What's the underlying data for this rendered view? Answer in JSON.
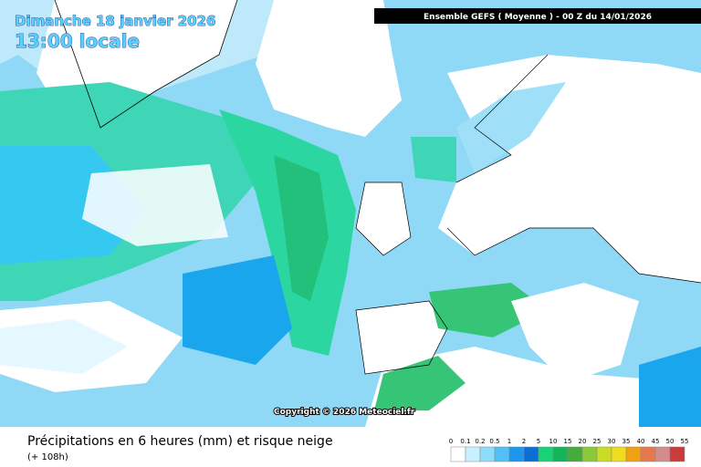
{
  "header": {
    "date": "Dimanche 18 janvier 2026",
    "time": "13:00 locale",
    "run": "Ensemble GEFS  ( Moyenne )  -  00 Z du 14/01/2026"
  },
  "copyright": "Copyright © 2026 Meteociel.fr",
  "footer": {
    "title": "Précipitations en 6 heures (mm) et risque neige",
    "lead": "(+ 108h)"
  },
  "legend": {
    "labels": [
      "0",
      "0.1",
      "0.2",
      "0.5",
      "1",
      "2",
      "5",
      "10",
      "15",
      "20",
      "25",
      "30",
      "35",
      "40",
      "45",
      "50",
      "55"
    ],
    "colors": [
      "#ffffff",
      "#c8f0ff",
      "#8fdcfa",
      "#50c0f5",
      "#1e96eb",
      "#0a6ed2",
      "#18d278",
      "#14b45a",
      "#46aa3c",
      "#8cc83c",
      "#c8dc28",
      "#f0dc1e",
      "#f0a014",
      "#e67850",
      "#d28c8c",
      "#c83c3c"
    ]
  }
}
